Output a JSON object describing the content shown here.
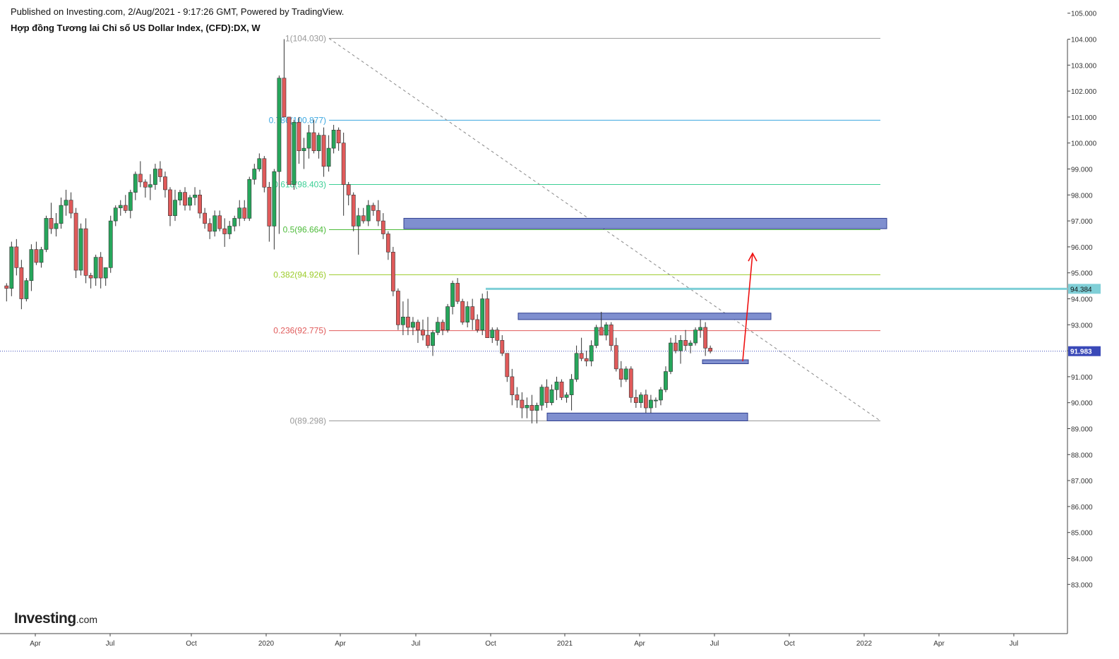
{
  "header": {
    "published": "Published on Investing.com, 2/Aug/2021 - 9:17:26 GMT, Powered by TradingView.",
    "title": "Hợp đồng Tương lai Chỉ số US Dollar Index, (CFD):DX, W"
  },
  "logo": {
    "text": "Investing",
    "suffix": ".com"
  },
  "colors": {
    "up": "#26a65b",
    "down": "#e05a5a",
    "wick": "#333333",
    "zone_fill": "#7f8fcf",
    "zone_stroke": "#2f3f8f",
    "cyan_line": "#7fcfd7",
    "current_price": "#3a49b8",
    "arrow": "#ee1111"
  },
  "chart_data": {
    "type": "candlestick",
    "timeframe": "W",
    "ylim": [
      82.5,
      105.5
    ],
    "y_ticks": [
      "83.000",
      "84.000",
      "85.000",
      "86.000",
      "87.000",
      "88.000",
      "89.000",
      "90.000",
      "91.000",
      "92.000",
      "93.000",
      "94.000",
      "95.000",
      "96.000",
      "97.000",
      "98.000",
      "99.000",
      "100.000",
      "101.000",
      "102.000",
      "103.000",
      "104.000",
      "105.000"
    ],
    "x_ticks": [
      "Apr",
      "Jul",
      "Oct",
      "2020",
      "Apr",
      "Jul",
      "Oct",
      "2021",
      "Apr",
      "Jul",
      "Oct",
      "2022",
      "Apr",
      "Jul"
    ],
    "price_labels": {
      "current": "91.983",
      "level": "94.384"
    },
    "fibonacci": [
      {
        "label": "1(104.030)",
        "value": 104.03,
        "color": "#999999"
      },
      {
        "label": "0.786(100.877)",
        "value": 100.877,
        "color": "#3ba7e0"
      },
      {
        "label": "0.618(98.403)",
        "value": 98.403,
        "color": "#3bcf95"
      },
      {
        "label": "0.5(96.664)",
        "value": 96.664,
        "color": "#4dbb3a"
      },
      {
        "label": "0.382(94.926)",
        "value": 94.926,
        "color": "#9ccc2a"
      },
      {
        "label": "0.236(92.775)",
        "value": 92.775,
        "color": "#e05a5a"
      },
      {
        "label": "0(89.298)",
        "value": 89.298,
        "color": "#999999"
      }
    ],
    "zones": [
      {
        "low": 96.7,
        "high": 97.1
      },
      {
        "low": 93.2,
        "high": 93.45
      },
      {
        "low": 91.5,
        "high": 91.65
      },
      {
        "low": 89.3,
        "high": 89.6
      }
    ],
    "candles": [
      [
        94.5,
        94.6,
        93.9,
        94.4
      ],
      [
        94.4,
        96.2,
        94.1,
        96.0
      ],
      [
        96.0,
        96.3,
        94.9,
        95.2
      ],
      [
        95.2,
        95.5,
        93.6,
        94.0
      ],
      [
        94.0,
        94.8,
        93.9,
        94.7
      ],
      [
        94.7,
        96.1,
        94.3,
        95.9
      ],
      [
        95.9,
        96.2,
        95.3,
        95.4
      ],
      [
        95.4,
        96.0,
        95.2,
        95.9
      ],
      [
        95.9,
        97.2,
        95.8,
        97.1
      ],
      [
        97.1,
        97.7,
        96.5,
        96.7
      ],
      [
        96.7,
        97.3,
        96.4,
        96.9
      ],
      [
        96.9,
        97.9,
        96.7,
        97.6
      ],
      [
        97.6,
        98.2,
        97.2,
        97.8
      ],
      [
        97.8,
        98.1,
        97.1,
        97.3
      ],
      [
        97.3,
        97.5,
        94.8,
        95.1
      ],
      [
        95.1,
        96.9,
        94.9,
        96.7
      ],
      [
        96.7,
        97.1,
        94.6,
        94.9
      ],
      [
        94.9,
        95.0,
        94.4,
        94.8
      ],
      [
        94.8,
        95.7,
        94.5,
        95.6
      ],
      [
        95.6,
        95.8,
        94.4,
        94.8
      ],
      [
        94.8,
        95.2,
        94.5,
        95.2
      ],
      [
        95.2,
        97.2,
        95.0,
        97.0
      ],
      [
        97.0,
        97.6,
        96.8,
        97.5
      ],
      [
        97.5,
        97.8,
        97.2,
        97.6
      ],
      [
        97.6,
        98.0,
        97.3,
        97.4
      ],
      [
        97.4,
        98.2,
        97.1,
        98.1
      ],
      [
        98.1,
        98.9,
        97.8,
        98.8
      ],
      [
        98.8,
        99.3,
        98.3,
        98.5
      ],
      [
        98.5,
        98.6,
        97.9,
        98.3
      ],
      [
        98.3,
        98.8,
        97.8,
        98.4
      ],
      [
        98.4,
        99.2,
        98.2,
        99.0
      ],
      [
        99.0,
        99.3,
        98.5,
        98.7
      ],
      [
        98.7,
        98.9,
        97.9,
        98.2
      ],
      [
        98.2,
        98.3,
        96.8,
        97.2
      ],
      [
        97.2,
        98.2,
        97.0,
        97.8
      ],
      [
        97.8,
        98.2,
        97.6,
        98.1
      ],
      [
        98.1,
        98.3,
        97.4,
        97.6
      ],
      [
        97.6,
        98.0,
        97.4,
        97.9
      ],
      [
        97.9,
        98.3,
        97.6,
        98.0
      ],
      [
        98.0,
        98.2,
        97.1,
        97.3
      ],
      [
        97.3,
        97.5,
        96.7,
        96.9
      ],
      [
        96.9,
        97.1,
        96.3,
        96.6
      ],
      [
        96.6,
        97.4,
        96.4,
        97.2
      ],
      [
        97.2,
        97.4,
        96.6,
        96.7
      ],
      [
        96.7,
        97.1,
        96.0,
        96.5
      ],
      [
        96.5,
        97.0,
        96.3,
        96.8
      ],
      [
        96.8,
        97.2,
        96.6,
        97.1
      ],
      [
        97.1,
        97.8,
        96.8,
        97.5
      ],
      [
        97.5,
        97.8,
        97.0,
        97.1
      ],
      [
        97.1,
        98.7,
        97.0,
        98.6
      ],
      [
        98.6,
        99.2,
        98.4,
        99.0
      ],
      [
        99.0,
        99.6,
        98.9,
        99.4
      ],
      [
        99.4,
        99.5,
        98.1,
        98.3
      ],
      [
        98.3,
        98.5,
        96.2,
        96.8
      ],
      [
        96.8,
        99.0,
        95.9,
        98.9
      ],
      [
        98.9,
        102.6,
        96.5,
        102.5
      ],
      [
        102.5,
        104.0,
        101.0,
        101.0
      ],
      [
        101.0,
        100.9,
        98.4,
        98.4
      ],
      [
        98.4,
        100.9,
        98.2,
        100.8
      ],
      [
        100.8,
        101.0,
        99.2,
        99.7
      ],
      [
        99.7,
        100.2,
        99.0,
        99.8
      ],
      [
        99.8,
        100.7,
        99.4,
        100.4
      ],
      [
        100.4,
        100.9,
        99.6,
        99.7
      ],
      [
        99.7,
        100.4,
        99.4,
        100.3
      ],
      [
        100.3,
        100.6,
        98.7,
        99.1
      ],
      [
        99.1,
        100.3,
        98.9,
        99.8
      ],
      [
        99.8,
        100.7,
        99.6,
        100.5
      ],
      [
        100.5,
        100.6,
        99.7,
        100.0
      ],
      [
        100.0,
        100.4,
        97.2,
        98.4
      ],
      [
        98.4,
        98.5,
        97.6,
        98.0
      ],
      [
        98.0,
        98.1,
        96.6,
        96.8
      ],
      [
        96.8,
        97.5,
        95.7,
        97.2
      ],
      [
        97.2,
        97.5,
        96.9,
        97.0
      ],
      [
        97.0,
        97.8,
        96.8,
        97.6
      ],
      [
        97.6,
        97.7,
        97.2,
        97.4
      ],
      [
        97.4,
        97.8,
        96.8,
        97.0
      ],
      [
        97.0,
        97.3,
        96.3,
        96.5
      ],
      [
        96.5,
        96.6,
        95.5,
        95.8
      ],
      [
        95.8,
        96.0,
        94.1,
        94.3
      ],
      [
        94.3,
        94.4,
        92.8,
        93.0
      ],
      [
        93.0,
        93.9,
        92.6,
        93.3
      ],
      [
        93.3,
        94.0,
        92.6,
        92.9
      ],
      [
        92.9,
        93.3,
        92.6,
        93.1
      ],
      [
        93.1,
        93.2,
        92.3,
        92.8
      ],
      [
        92.8,
        93.2,
        92.4,
        92.6
      ],
      [
        92.6,
        93.3,
        92.1,
        92.2
      ],
      [
        92.2,
        92.8,
        91.8,
        92.7
      ],
      [
        92.7,
        93.3,
        92.6,
        93.1
      ],
      [
        93.1,
        93.2,
        92.6,
        92.8
      ],
      [
        92.8,
        93.8,
        92.7,
        93.7
      ],
      [
        93.7,
        94.7,
        93.4,
        94.6
      ],
      [
        94.6,
        94.8,
        93.8,
        93.9
      ],
      [
        93.9,
        94.0,
        93.0,
        93.1
      ],
      [
        93.1,
        93.9,
        92.9,
        93.7
      ],
      [
        93.7,
        94.0,
        92.8,
        93.2
      ],
      [
        93.2,
        93.4,
        92.7,
        92.8
      ],
      [
        92.8,
        94.2,
        92.6,
        94.0
      ],
      [
        94.0,
        94.3,
        92.5,
        92.5
      ],
      [
        92.5,
        92.9,
        92.3,
        92.8
      ],
      [
        92.8,
        92.9,
        92.2,
        92.4
      ],
      [
        92.4,
        92.6,
        91.8,
        91.9
      ],
      [
        91.9,
        91.9,
        90.8,
        91.0
      ],
      [
        91.0,
        91.3,
        89.9,
        90.3
      ],
      [
        90.3,
        90.6,
        89.8,
        90.1
      ],
      [
        90.1,
        90.4,
        89.4,
        89.8
      ],
      [
        89.8,
        90.2,
        89.4,
        89.9
      ],
      [
        89.9,
        90.3,
        89.2,
        89.7
      ],
      [
        89.7,
        90.0,
        89.2,
        89.9
      ],
      [
        89.9,
        90.7,
        89.7,
        90.6
      ],
      [
        90.6,
        90.9,
        89.8,
        90.0
      ],
      [
        90.0,
        90.7,
        89.9,
        90.5
      ],
      [
        90.5,
        91.0,
        90.1,
        90.8
      ],
      [
        90.8,
        90.9,
        90.1,
        90.2
      ],
      [
        90.2,
        90.4,
        90.0,
        90.3
      ],
      [
        90.3,
        91.1,
        89.7,
        90.9
      ],
      [
        90.9,
        92.2,
        90.8,
        91.9
      ],
      [
        91.9,
        92.5,
        91.6,
        91.7
      ],
      [
        91.7,
        92.0,
        91.4,
        91.6
      ],
      [
        91.6,
        92.4,
        91.4,
        92.2
      ],
      [
        92.2,
        93.0,
        92.1,
        92.9
      ],
      [
        92.9,
        93.5,
        92.6,
        92.6
      ],
      [
        92.6,
        93.1,
        92.4,
        93.0
      ],
      [
        93.0,
        93.1,
        92.0,
        92.2
      ],
      [
        92.2,
        92.5,
        91.2,
        91.3
      ],
      [
        91.3,
        91.6,
        90.6,
        90.9
      ],
      [
        90.9,
        91.4,
        90.8,
        91.3
      ],
      [
        91.3,
        91.4,
        90.0,
        90.2
      ],
      [
        90.2,
        90.5,
        89.8,
        90.0
      ],
      [
        90.0,
        90.4,
        89.8,
        90.3
      ],
      [
        90.3,
        90.5,
        89.6,
        89.8
      ],
      [
        89.8,
        90.3,
        89.6,
        90.1
      ],
      [
        90.1,
        90.2,
        89.8,
        90.1
      ],
      [
        90.1,
        90.6,
        89.9,
        90.5
      ],
      [
        90.5,
        91.4,
        90.4,
        91.2
      ],
      [
        91.2,
        92.5,
        91.1,
        92.3
      ],
      [
        92.3,
        92.6,
        91.9,
        92.0
      ],
      [
        92.0,
        92.6,
        91.5,
        92.4
      ],
      [
        92.4,
        92.8,
        92.0,
        92.2
      ],
      [
        92.2,
        92.4,
        91.9,
        92.3
      ],
      [
        92.3,
        92.9,
        92.2,
        92.8
      ],
      [
        92.8,
        93.2,
        92.5,
        92.9
      ],
      [
        92.9,
        93.1,
        91.8,
        92.1
      ],
      [
        92.1,
        92.2,
        91.9,
        91.98
      ]
    ]
  }
}
